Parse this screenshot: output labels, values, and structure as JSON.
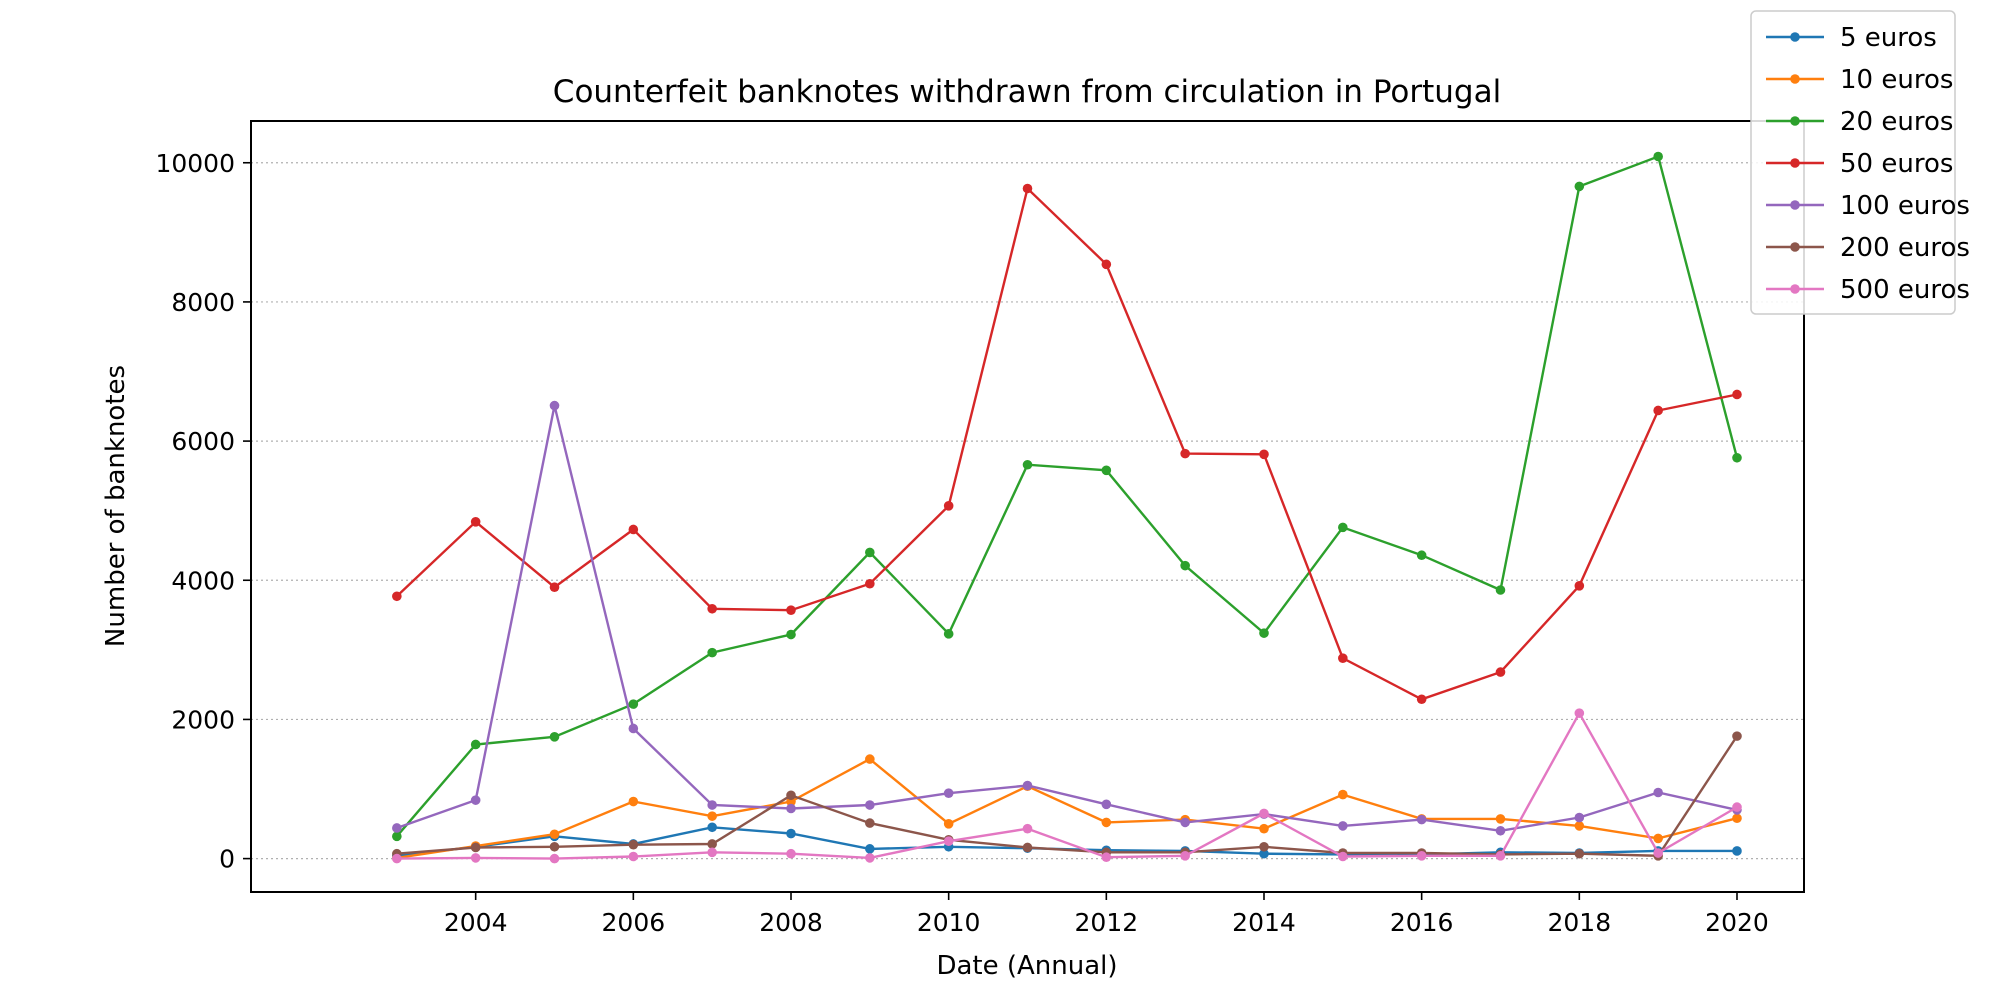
{
  "chart_data": {
    "type": "line",
    "title": "Counterfeit banknotes withdrawn from circulation in Portugal",
    "xlabel": "Date (Annual)",
    "ylabel": "Number of banknotes",
    "x": [
      2003,
      2004,
      2005,
      2006,
      2007,
      2008,
      2009,
      2010,
      2011,
      2012,
      2013,
      2014,
      2015,
      2016,
      2017,
      2018,
      2019,
      2020
    ],
    "xlim": [
      2001.15,
      2020.85
    ],
    "ylim": [
      -480,
      10600
    ],
    "xticks": [
      "2004",
      "2006",
      "2008",
      "2010",
      "2012",
      "2014",
      "2016",
      "2018",
      "2020"
    ],
    "yticks": [
      "0",
      "2000",
      "4000",
      "6000",
      "8000",
      "10000"
    ],
    "grid": "y-dotted",
    "legend_position": "top-right",
    "series": [
      {
        "name": "5 euros",
        "color": "#1f77b4",
        "values": [
          40,
          170,
          320,
          210,
          450,
          360,
          140,
          170,
          150,
          120,
          110,
          70,
          60,
          60,
          90,
          80,
          110,
          110
        ]
      },
      {
        "name": "10 euros",
        "color": "#ff7f0e",
        "values": [
          10,
          180,
          350,
          820,
          610,
          820,
          1430,
          500,
          1040,
          520,
          560,
          430,
          920,
          570,
          570,
          470,
          290,
          580
        ]
      },
      {
        "name": "20 euros",
        "color": "#2ca02c",
        "values": [
          320,
          1640,
          1750,
          2220,
          2960,
          3220,
          4400,
          3230,
          5660,
          5580,
          4210,
          3240,
          4760,
          4360,
          3860,
          9660,
          10090,
          5760
        ]
      },
      {
        "name": "50 euros",
        "color": "#d62728",
        "values": [
          3770,
          4840,
          3900,
          4730,
          3590,
          3570,
          3950,
          5070,
          9630,
          8540,
          5820,
          5810,
          2880,
          2290,
          2680,
          3920,
          6440,
          6670
        ]
      },
      {
        "name": "100 euros",
        "color": "#9467bd",
        "values": [
          440,
          840,
          6510,
          1870,
          770,
          720,
          770,
          940,
          1050,
          780,
          520,
          640,
          470,
          560,
          400,
          590,
          950,
          700
        ]
      },
      {
        "name": "200 euros",
        "color": "#8c564b",
        "values": [
          70,
          160,
          170,
          200,
          210,
          910,
          510,
          270,
          160,
          90,
          90,
          170,
          80,
          80,
          60,
          70,
          40,
          1760
        ]
      },
      {
        "name": "500 euros",
        "color": "#e377c2",
        "values": [
          0,
          10,
          0,
          30,
          90,
          70,
          10,
          250,
          430,
          20,
          40,
          650,
          30,
          40,
          40,
          2090,
          80,
          740
        ]
      }
    ]
  }
}
